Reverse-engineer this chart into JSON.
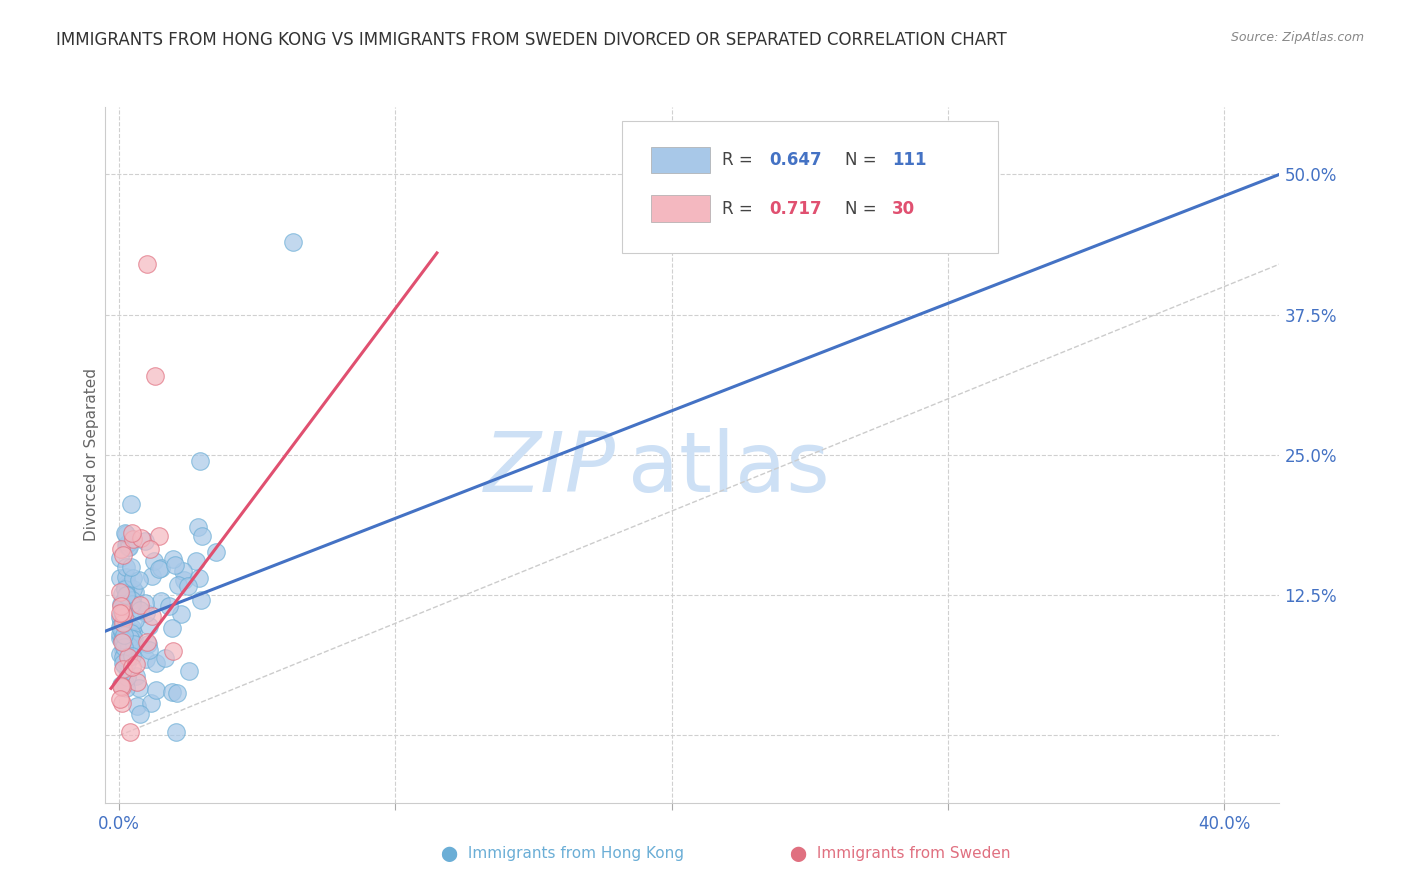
{
  "title": "IMMIGRANTS FROM HONG KONG VS IMMIGRANTS FROM SWEDEN DIVORCED OR SEPARATED CORRELATION CHART",
  "source": "Source: ZipAtlas.com",
  "ylabel": "Divorced or Separated",
  "xlim": [
    -0.005,
    0.42
  ],
  "ylim": [
    -0.06,
    0.56
  ],
  "hk_color": "#a8c8e8",
  "hk_edge_color": "#6baed6",
  "sweden_color": "#f4b8c0",
  "sweden_edge_color": "#e07080",
  "hk_line_color": "#4472c4",
  "sweden_line_color": "#e05070",
  "ref_line_color": "#cccccc",
  "tick_label_color": "#4472c4",
  "grid_color": "#d0d0d0",
  "background_color": "#ffffff",
  "y_ticks_right": [
    0.0,
    0.125,
    0.25,
    0.375,
    0.5
  ],
  "y_tick_labels_right": [
    "",
    "12.5%",
    "25.0%",
    "37.5%",
    "50.0%"
  ],
  "x_ticks": [
    0.0,
    0.1,
    0.2,
    0.3,
    0.4
  ],
  "x_tick_labels": [
    "0.0%",
    "",
    "",
    "",
    "40.0%"
  ],
  "hk_line_x0": -0.005,
  "hk_line_x1": 0.42,
  "hk_line_y0": 0.093,
  "hk_line_y1": 0.5,
  "sw_line_x0": -0.003,
  "sw_line_x1": 0.115,
  "sw_line_y0": 0.042,
  "sw_line_y1": 0.43,
  "watermark_zip": "ZIP",
  "watermark_atlas": "atlas",
  "watermark_color": "#cde0f5"
}
